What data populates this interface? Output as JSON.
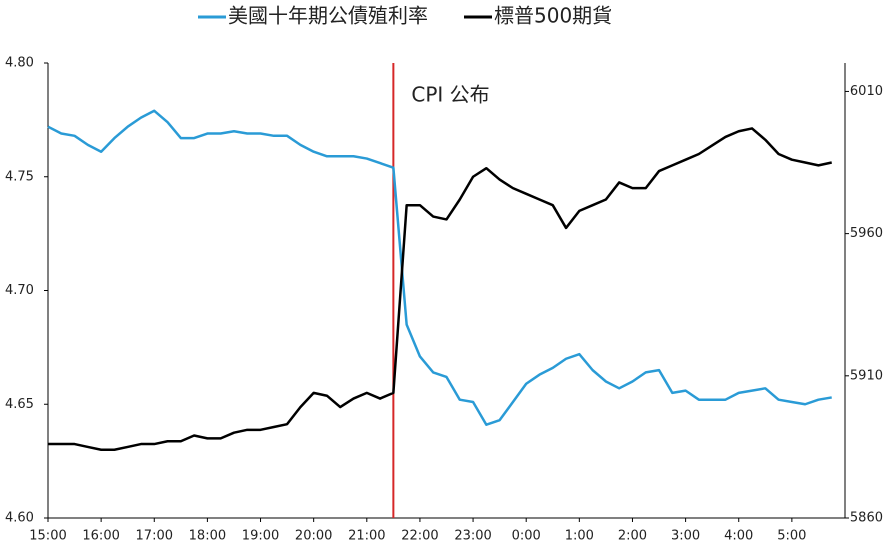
{
  "chart_data": {
    "type": "line",
    "legend": "top",
    "categories": [
      "15:00",
      null,
      null,
      null,
      "16:00",
      null,
      null,
      null,
      "17:00",
      null,
      null,
      null,
      "18:00",
      null,
      null,
      null,
      "19:00",
      null,
      null,
      null,
      "20:00",
      null,
      null,
      null,
      "21:00",
      null,
      null,
      null,
      "22:00",
      null,
      null,
      null,
      "23:00",
      null,
      null,
      null,
      "0:00",
      null,
      null,
      null,
      "1:00",
      null,
      null,
      null,
      "2:00",
      null,
      null,
      null,
      "3:00",
      null,
      null,
      null,
      "4:00",
      null,
      null,
      null,
      "5:00",
      null,
      null,
      null,
      null
    ],
    "series": [
      {
        "name": "美國十年期公債殖利率",
        "color": "#2a9bd6",
        "axis": "y",
        "values": [
          4.772,
          4.769,
          4.768,
          4.764,
          4.761,
          4.767,
          4.772,
          4.776,
          4.779,
          4.774,
          4.767,
          4.767,
          4.769,
          4.769,
          4.77,
          4.769,
          4.769,
          4.768,
          4.768,
          4.764,
          4.761,
          4.759,
          4.759,
          4.759,
          4.758,
          4.756,
          4.754,
          4.685,
          4.671,
          4.664,
          4.662,
          4.652,
          4.651,
          4.641,
          4.643,
          4.651,
          4.659,
          4.663,
          4.666,
          4.67,
          4.672,
          4.665,
          4.66,
          4.657,
          4.66,
          4.664,
          4.665,
          4.655,
          4.656,
          4.652,
          4.652,
          4.652,
          4.655,
          4.656,
          4.657,
          4.652,
          4.651,
          4.65,
          4.652,
          4.653,
          null
        ]
      },
      {
        "name": "標普500期貨",
        "color": "#000000",
        "axis": "y2",
        "values": [
          5886,
          5886,
          5886,
          5885,
          5884,
          5884,
          5885,
          5886,
          5886,
          5887,
          5887,
          5889,
          5888,
          5888,
          5890,
          5891,
          5891,
          5892,
          5893,
          5899,
          5904,
          5903,
          5899,
          5902,
          5904,
          5902,
          5904,
          5970,
          5970,
          5966,
          5965,
          5972,
          5980,
          5983,
          5979,
          5976,
          5974,
          5972,
          5970,
          5962,
          5968,
          5970,
          5972,
          5978,
          5976,
          5976,
          5982,
          5984,
          5986,
          5988,
          5991,
          5994,
          5996,
          5997,
          5993,
          5988,
          5986,
          5985,
          5984,
          5985,
          null
        ]
      }
    ],
    "ylim": [
      4.6,
      4.8
    ],
    "yticks": [
      {
        "value": 4.6,
        "label": "4.60"
      },
      {
        "value": 4.65,
        "label": "4.65"
      },
      {
        "value": 4.7,
        "label": "4.70"
      },
      {
        "value": 4.75,
        "label": "4.75"
      },
      {
        "value": 4.8,
        "label": "4.80"
      }
    ],
    "y2lim": [
      5860,
      6020
    ],
    "y2ticks": [
      5860,
      5910,
      5960,
      6010
    ],
    "annotation": {
      "text": "CPI 公布",
      "category_index": 26,
      "color": "#d62728"
    }
  }
}
